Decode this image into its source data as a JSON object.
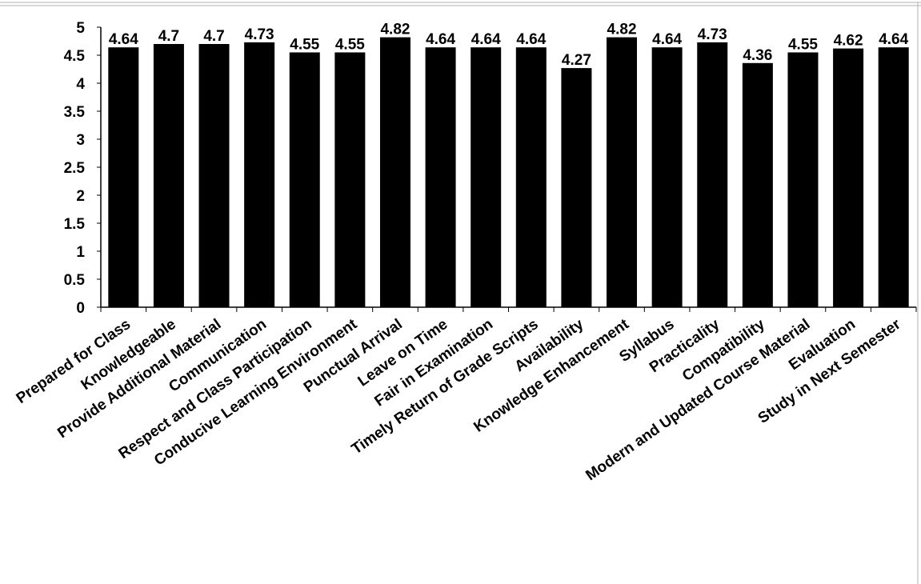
{
  "chart_data": {
    "type": "bar",
    "categories": [
      "Prepared for Class",
      "Knowledgeable",
      "Provide Additional Material",
      "Communication",
      "Respect and Class Participation",
      "Conducive Learning Environment",
      "Punctual Arrival",
      "Leave on Time",
      "Fair in Examination",
      "Timely Return of Grade Scripts",
      "Availability",
      "Knowledge Enhancement",
      "Syllabus",
      "Practicality",
      "Compatibility",
      "Modern and Updated Course Material",
      "Evaluation",
      "Study in Next Semester"
    ],
    "values": [
      4.64,
      4.7,
      4.7,
      4.73,
      4.55,
      4.55,
      4.82,
      4.64,
      4.64,
      4.64,
      4.27,
      4.82,
      4.64,
      4.73,
      4.36,
      4.55,
      4.62,
      4.64
    ],
    "data_labels": [
      "4.64",
      "4.7",
      "4.7",
      "4.73",
      "4.55",
      "4.55",
      "4.82",
      "4.64",
      "4.64",
      "4.64",
      "4.27",
      "4.82",
      "4.64",
      "4.73",
      "4.36",
      "4.55",
      "4.62",
      "4.64"
    ],
    "ylim": [
      0,
      5
    ],
    "yticks": [
      "0",
      "0.5",
      "1",
      "1.5",
      "2",
      "2.5",
      "3",
      "3.5",
      "4",
      "4.5",
      "5"
    ],
    "title": "",
    "xlabel": "",
    "ylabel": "",
    "grid": false,
    "legend": "none",
    "bar_color": "#000000"
  }
}
